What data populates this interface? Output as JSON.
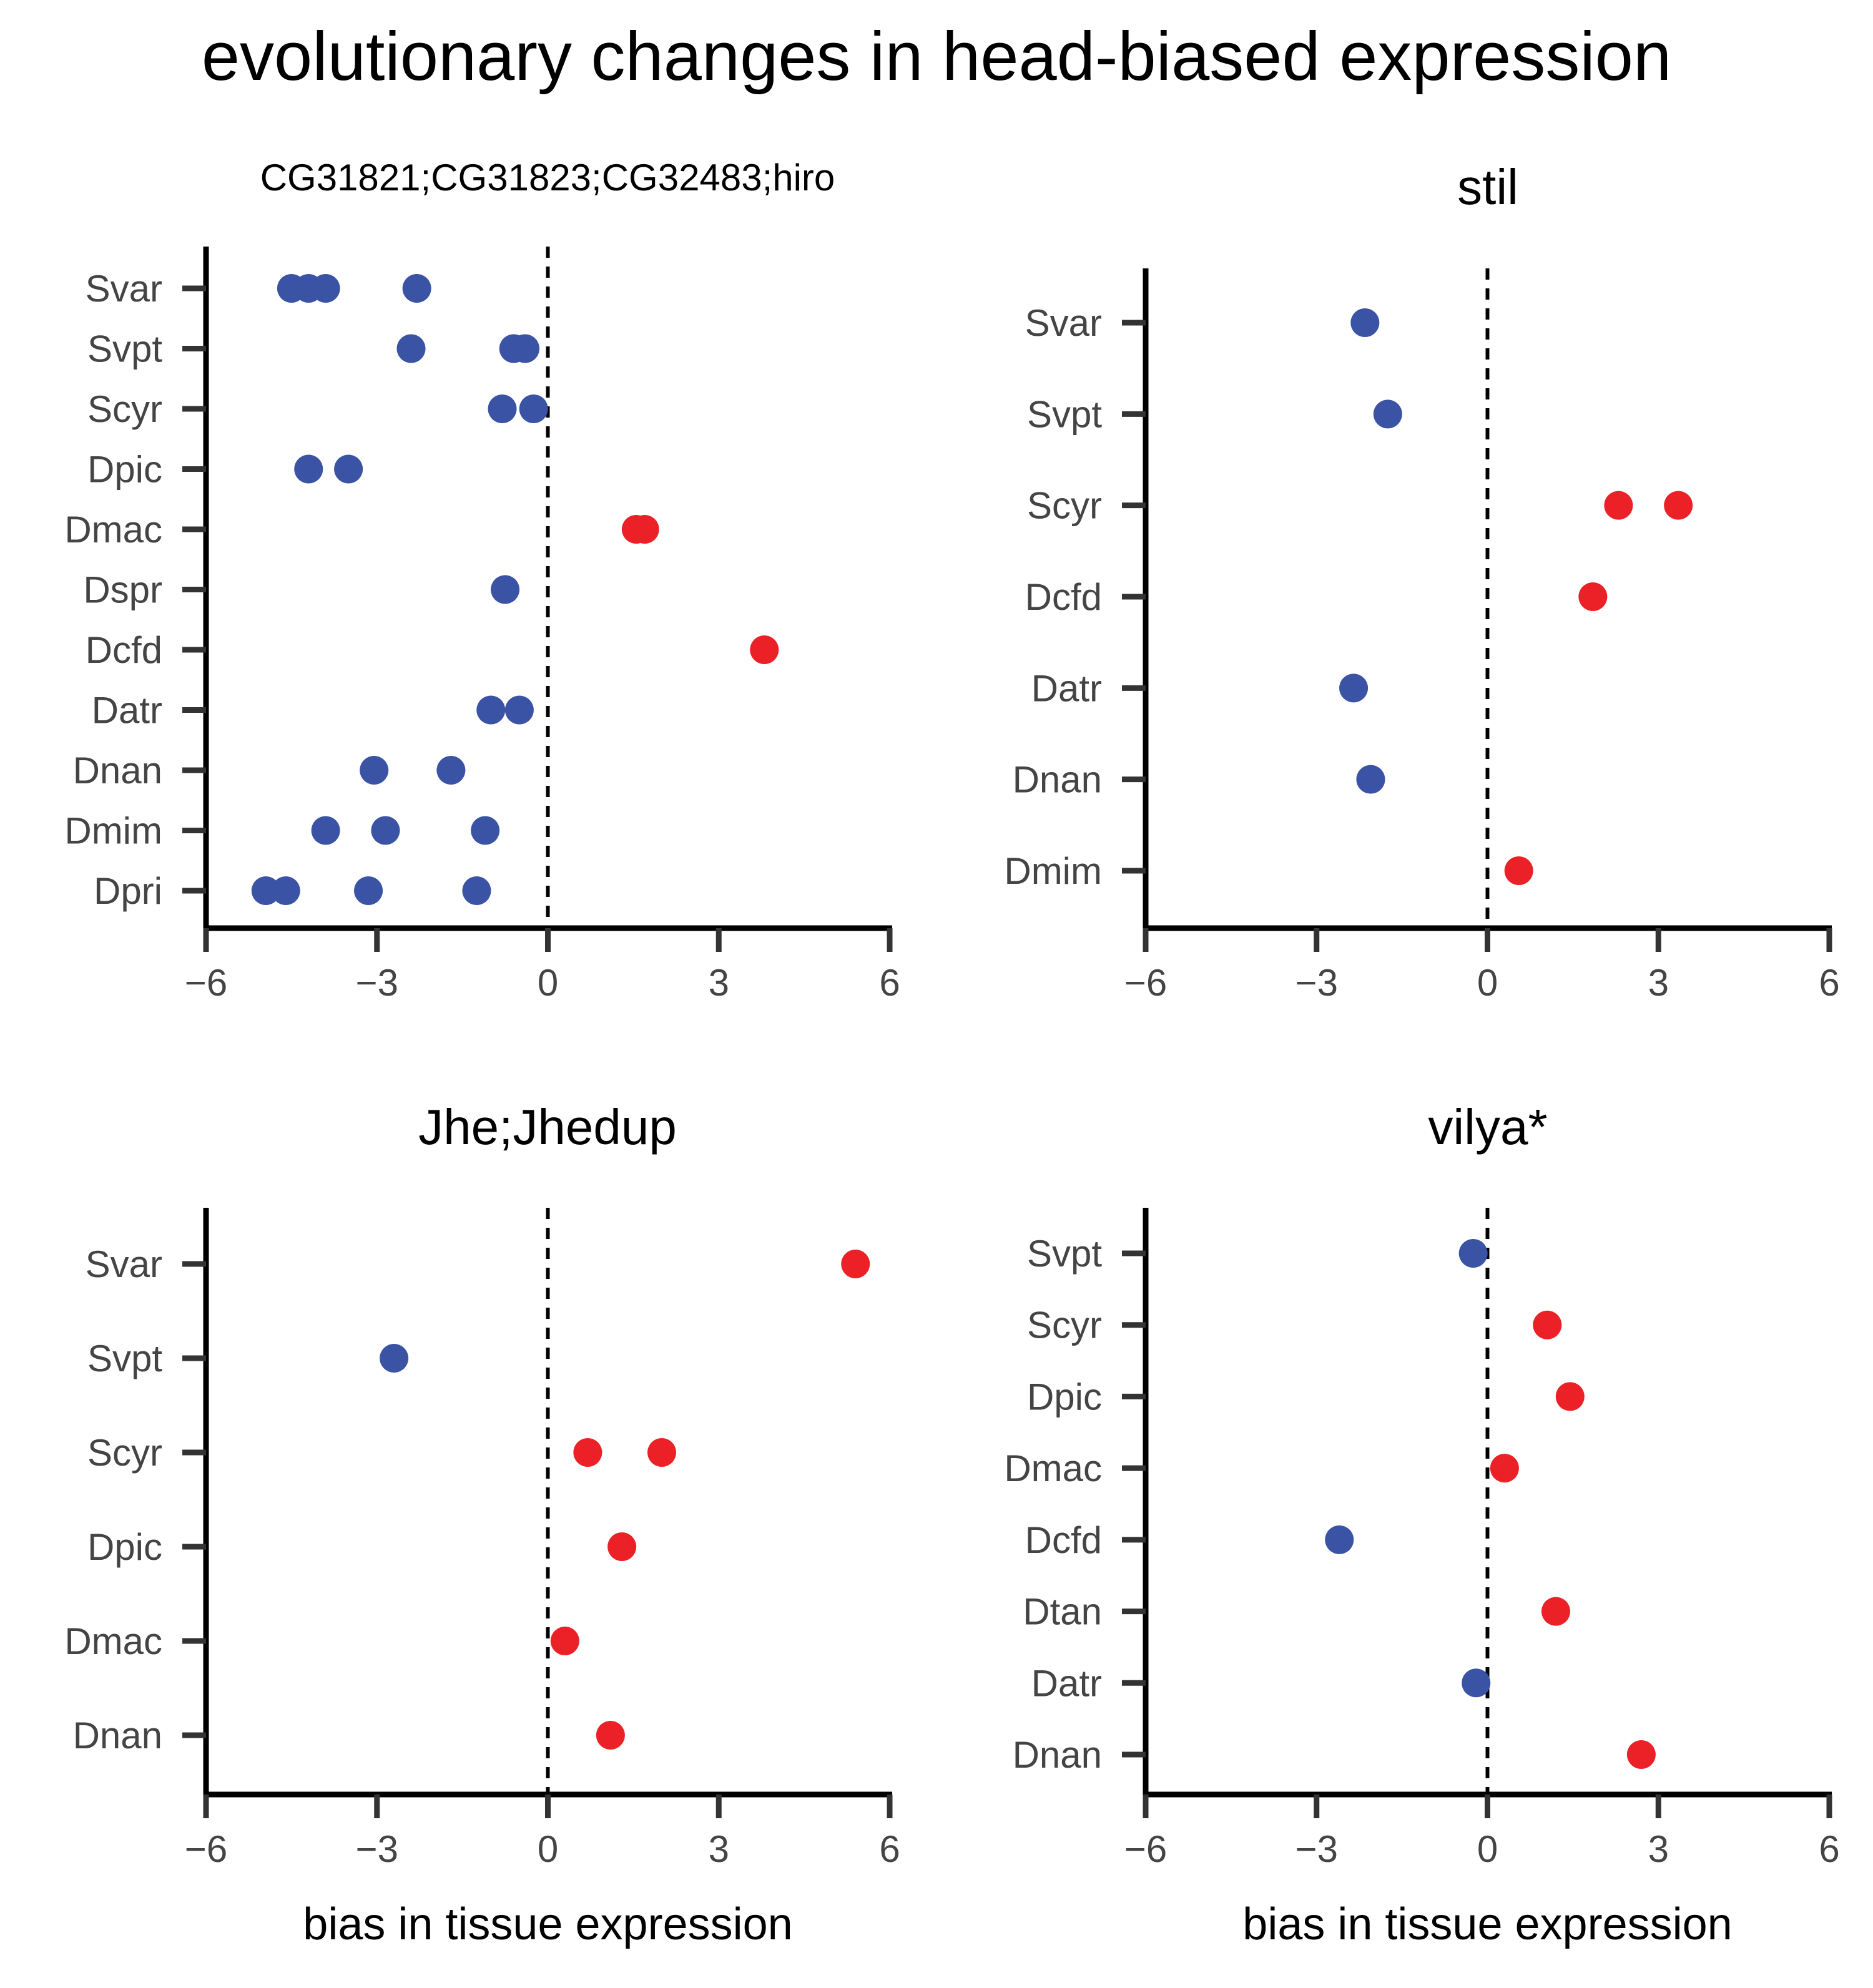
{
  "title": "evolutionary changes in head-biased expression",
  "colors": {
    "negative": "#3a53a4",
    "positive": "#ec2127",
    "axis": "#000000",
    "tick_text": "#444444"
  },
  "chart_data": [
    {
      "type": "scatter",
      "title": "CG31821;CG31823;CG32483;hiro",
      "xlabel": "",
      "ylabel": "",
      "xlim": [
        -6,
        6
      ],
      "xticks": [
        "−6",
        "−3",
        "0",
        "3",
        "6"
      ],
      "reference_line": 0,
      "categories": [
        "Svar",
        "Svpt",
        "Scyr",
        "Dpic",
        "Dmac",
        "Dspr",
        "Dcfd",
        "Datr",
        "Dnan",
        "Dmim",
        "Dpri"
      ],
      "points": [
        {
          "category": "Svar",
          "values": [
            -4.5,
            -4.2,
            -3.9,
            -2.3
          ]
        },
        {
          "category": "Svpt",
          "values": [
            -2.4,
            -0.6,
            -0.4
          ]
        },
        {
          "category": "Scyr",
          "values": [
            -0.8,
            -0.25
          ]
        },
        {
          "category": "Dpic",
          "values": [
            -4.2,
            -3.5
          ]
        },
        {
          "category": "Dmac",
          "values": [
            1.55,
            1.7
          ]
        },
        {
          "category": "Dspr",
          "values": [
            -0.75
          ]
        },
        {
          "category": "Dcfd",
          "values": [
            3.8
          ]
        },
        {
          "category": "Datr",
          "values": [
            -1.0,
            -0.5
          ]
        },
        {
          "category": "Dnan",
          "values": [
            -3.05,
            -1.7
          ]
        },
        {
          "category": "Dmim",
          "values": [
            -3.9,
            -2.85,
            -1.1
          ]
        },
        {
          "category": "Dpri",
          "values": [
            -4.95,
            -4.6,
            -3.15,
            -1.25
          ]
        }
      ]
    },
    {
      "type": "scatter",
      "title": "stil",
      "xlabel": "",
      "ylabel": "",
      "xlim": [
        -6,
        6
      ],
      "xticks": [
        "−6",
        "−3",
        "0",
        "3",
        "6"
      ],
      "reference_line": 0,
      "categories": [
        "Svar",
        "Svpt",
        "Scyr",
        "Dcfd",
        "Datr",
        "Dnan",
        "Dmim"
      ],
      "points": [
        {
          "category": "Svar",
          "values": [
            -2.15
          ]
        },
        {
          "category": "Svpt",
          "values": [
            -1.75
          ]
        },
        {
          "category": "Scyr",
          "values": [
            2.3,
            3.35
          ]
        },
        {
          "category": "Dcfd",
          "values": [
            1.85
          ]
        },
        {
          "category": "Datr",
          "values": [
            -2.35
          ]
        },
        {
          "category": "Dnan",
          "values": [
            -2.05
          ]
        },
        {
          "category": "Dmim",
          "values": [
            0.55
          ]
        }
      ]
    },
    {
      "type": "scatter",
      "title": "Jhe;Jhedup",
      "xlabel": "bias in tissue expression",
      "ylabel": "",
      "xlim": [
        -6,
        6
      ],
      "xticks": [
        "−6",
        "−3",
        "0",
        "3",
        "6"
      ],
      "reference_line": 0,
      "categories": [
        "Svar",
        "Svpt",
        "Scyr",
        "Dpic",
        "Dmac",
        "Dnan"
      ],
      "points": [
        {
          "category": "Svar",
          "values": [
            5.4
          ]
        },
        {
          "category": "Svpt",
          "values": [
            -2.7
          ]
        },
        {
          "category": "Scyr",
          "values": [
            0.7,
            2.0
          ]
        },
        {
          "category": "Dpic",
          "values": [
            1.3
          ]
        },
        {
          "category": "Dmac",
          "values": [
            0.3
          ]
        },
        {
          "category": "Dnan",
          "values": [
            1.1
          ]
        }
      ]
    },
    {
      "type": "scatter",
      "title": "vilya*",
      "xlabel": "bias in tissue expression",
      "ylabel": "",
      "xlim": [
        -6,
        6
      ],
      "xticks": [
        "−6",
        "−3",
        "0",
        "3",
        "6"
      ],
      "reference_line": 0,
      "categories": [
        "Svpt",
        "Scyr",
        "Dpic",
        "Dmac",
        "Dcfd",
        "Dtan",
        "Datr",
        "Dnan"
      ],
      "points": [
        {
          "category": "Svpt",
          "values": [
            -0.25
          ]
        },
        {
          "category": "Scyr",
          "values": [
            1.05
          ]
        },
        {
          "category": "Dpic",
          "values": [
            1.45
          ]
        },
        {
          "category": "Dmac",
          "values": [
            0.3
          ]
        },
        {
          "category": "Dcfd",
          "values": [
            -2.6
          ]
        },
        {
          "category": "Dtan",
          "values": [
            1.2
          ]
        },
        {
          "category": "Datr",
          "values": [
            -0.2
          ]
        },
        {
          "category": "Dnan",
          "values": [
            2.7
          ]
        }
      ]
    }
  ]
}
